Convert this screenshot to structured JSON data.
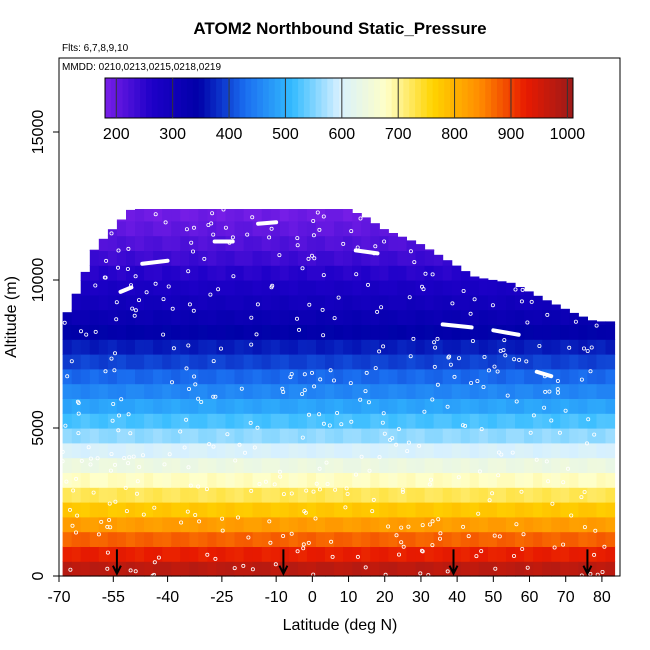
{
  "chart_data": {
    "type": "heatmap",
    "title": "ATOM2 Northbound Static_Pressure",
    "flights_note": "Flts: 6,7,8,9,10",
    "dates_note": "MMDD: 0210,0213,0215,0218,0219",
    "xlabel": "Latitude (deg N)",
    "ylabel": "Altitude (m)",
    "xlim": [
      -70,
      85
    ],
    "ylim": [
      0,
      17500
    ],
    "x_ticks": [
      -70,
      -55,
      -40,
      -25,
      -10,
      0,
      10,
      20,
      30,
      40,
      50,
      60,
      70,
      80
    ],
    "x_tick_labels": [
      "-70",
      "-55",
      "-40",
      "-25",
      "-10",
      "0",
      "10",
      "20",
      "30",
      "40",
      "50",
      "60",
      "70",
      "80"
    ],
    "y_ticks": [
      0,
      5000,
      10000,
      15000
    ],
    "y_tick_labels": [
      "0",
      "5000",
      "10000",
      "15000"
    ],
    "colorbar": {
      "min": 180,
      "max": 1010,
      "ticks": [
        200,
        300,
        400,
        500,
        600,
        700,
        800,
        900,
        1000
      ],
      "tick_labels": [
        "200",
        "300",
        "400",
        "500",
        "600",
        "700",
        "800",
        "900",
        "1000"
      ],
      "colors": [
        "#7a1fe8",
        "#1e00c8",
        "#0000a8",
        "#1a6ef0",
        "#33bbff",
        "#d6f0ff",
        "#ffffc8",
        "#ffd400",
        "#ff8c00",
        "#e81a00",
        "#9b1a1a"
      ]
    },
    "domain_lat": [
      -69,
      82
    ],
    "profile_top_alt": [
      [
        -69,
        8600
      ],
      [
        -65,
        9600
      ],
      [
        -60,
        11100
      ],
      [
        -50,
        12400
      ],
      [
        -30,
        12400
      ],
      [
        -20,
        12400
      ],
      [
        -10,
        12400
      ],
      [
        0,
        12400
      ],
      [
        10,
        12400
      ],
      [
        15,
        12100
      ],
      [
        20,
        11700
      ],
      [
        30,
        11200
      ],
      [
        45,
        10100
      ],
      [
        55,
        9900
      ],
      [
        65,
        9300
      ],
      [
        72,
        8900
      ],
      [
        78,
        8600
      ],
      [
        82,
        8600
      ]
    ],
    "pressure_levels": {
      "alt": [
        0,
        500,
        1000,
        1500,
        2000,
        2500,
        3000,
        3500,
        4000,
        4500,
        5000,
        5500,
        6000,
        6500,
        7000,
        7500,
        8000,
        8500,
        9000,
        9500,
        10000,
        10500,
        11000,
        11500,
        12000,
        12500,
        13000
      ],
      "pressure": [
        1000,
        950,
        900,
        850,
        800,
        750,
        700,
        660,
        620,
        580,
        540,
        505,
        470,
        440,
        410,
        380,
        355,
        330,
        305,
        285,
        265,
        245,
        225,
        210,
        195,
        182,
        170
      ]
    },
    "flight_tracks": [
      [
        [
          -47,
          10550
        ],
        [
          -40,
          10650
        ]
      ],
      [
        [
          -27,
          11300
        ],
        [
          -22,
          11300
        ]
      ],
      [
        [
          -15,
          11900
        ],
        [
          -10,
          11950
        ]
      ],
      [
        [
          12,
          11000
        ],
        [
          18,
          10900
        ]
      ],
      [
        [
          36,
          8500
        ],
        [
          44,
          8400
        ]
      ],
      [
        [
          50,
          8300
        ],
        [
          57,
          8150
        ]
      ],
      [
        [
          62,
          6900
        ],
        [
          66,
          6750
        ]
      ],
      [
        [
          70,
          9700
        ],
        [
          75,
          9550
        ]
      ],
      [
        [
          -53,
          9600
        ],
        [
          -50,
          9750
        ]
      ]
    ],
    "arrows_lat": [
      -54,
      -8,
      39,
      76
    ]
  }
}
